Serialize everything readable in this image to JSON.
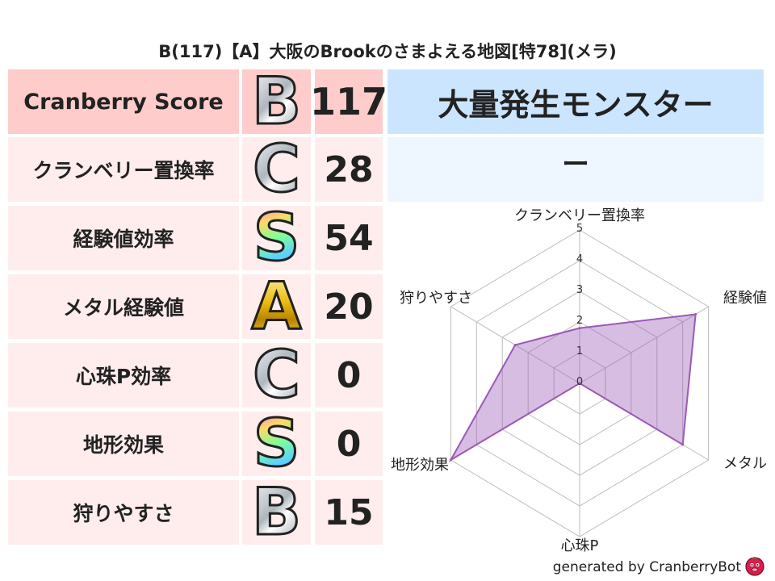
{
  "title": "B(117)【A】大阪のBrookのさまよえる地図[特78](メラ)",
  "score": {
    "label": "Cranberry Score",
    "grade": "B",
    "value": "117"
  },
  "rows": [
    {
      "label": "クランベリー置換率",
      "grade": "C",
      "value": "28"
    },
    {
      "label": "経験値効率",
      "grade": "S",
      "value": "54"
    },
    {
      "label": "メタル経験値",
      "grade": "A",
      "value": "20"
    },
    {
      "label": "心珠P効率",
      "grade": "C",
      "value": "0"
    },
    {
      "label": "地形効果",
      "grade": "S",
      "value": "0"
    },
    {
      "label": "狩りやすさ",
      "grade": "B",
      "value": "15"
    }
  ],
  "monster": {
    "header": "大量発生モンスター",
    "value": "ー"
  },
  "footer": {
    "text": "generated by CranberryBot",
    "mascot_icon": "cranberry-mascot-icon"
  },
  "colors": {
    "score_bg": "#ffcccc",
    "row_bg": "#ffeded",
    "monster_header_bg": "#cce5ff",
    "monster_value_bg": "#eef6ff",
    "radar_fill": "rgba(155,89,182,0.4)",
    "radar_stroke": "#9b59b6"
  },
  "chart_data": {
    "type": "radar",
    "axes": [
      "クランベリー置換率",
      "経験値",
      "メタル",
      "心珠P",
      "地形効果",
      "狩りやすさ"
    ],
    "values": [
      1.8,
      4.5,
      4.0,
      0,
      5,
      2.5
    ],
    "range": [
      0,
      5
    ],
    "ticks": [
      "0",
      "1",
      "2",
      "3",
      "4",
      "5"
    ],
    "grid": true
  }
}
